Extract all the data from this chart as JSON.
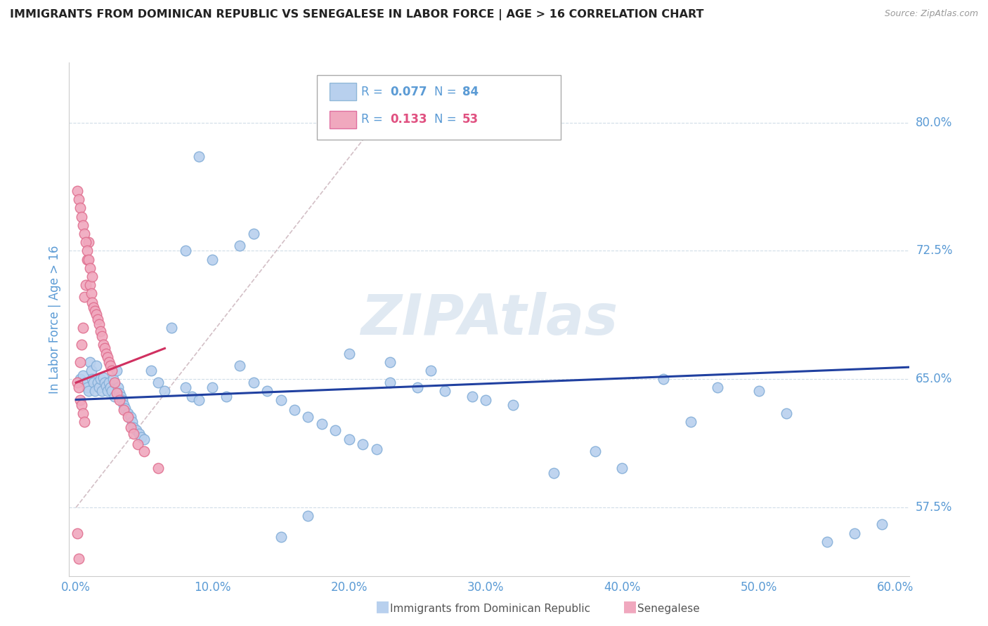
{
  "title": "IMMIGRANTS FROM DOMINICAN REPUBLIC VS SENEGALESE IN LABOR FORCE | AGE > 16 CORRELATION CHART",
  "source_text": "Source: ZipAtlas.com",
  "ylabel": "In Labor Force | Age > 16",
  "x_ticks": [
    0.0,
    0.1,
    0.2,
    0.3,
    0.4,
    0.5,
    0.6
  ],
  "x_tick_labels": [
    "0.0%",
    "10.0%",
    "20.0%",
    "30.0%",
    "40.0%",
    "50.0%",
    "60.0%"
  ],
  "y_ticks_right": [
    0.575,
    0.65,
    0.725,
    0.8
  ],
  "y_tick_labels_right": [
    "57.5%",
    "65.0%",
    "72.5%",
    "80.0%"
  ],
  "xlim": [
    -0.005,
    0.61
  ],
  "ylim": [
    0.535,
    0.835
  ],
  "axis_color": "#5b9bd5",
  "grid_color": "#d0dde8",
  "watermark_text": "ZIPAtlas",
  "blue_scatter_x": [
    0.003,
    0.005,
    0.007,
    0.008,
    0.009,
    0.01,
    0.011,
    0.012,
    0.013,
    0.014,
    0.015,
    0.016,
    0.017,
    0.018,
    0.019,
    0.02,
    0.021,
    0.022,
    0.023,
    0.024,
    0.025,
    0.026,
    0.027,
    0.028,
    0.03,
    0.031,
    0.032,
    0.033,
    0.034,
    0.035,
    0.036,
    0.038,
    0.04,
    0.041,
    0.042,
    0.044,
    0.046,
    0.048,
    0.05,
    0.055,
    0.06,
    0.065,
    0.07,
    0.08,
    0.085,
    0.09,
    0.1,
    0.11,
    0.12,
    0.13,
    0.14,
    0.15,
    0.16,
    0.17,
    0.18,
    0.19,
    0.2,
    0.21,
    0.22,
    0.23,
    0.25,
    0.27,
    0.29,
    0.3,
    0.32,
    0.35,
    0.38,
    0.4,
    0.43,
    0.45,
    0.47,
    0.5,
    0.52,
    0.55,
    0.57,
    0.59,
    0.08,
    0.1,
    0.12,
    0.13,
    0.15,
    0.17,
    0.2,
    0.23,
    0.26,
    0.09
  ],
  "blue_scatter_y": [
    0.65,
    0.652,
    0.648,
    0.645,
    0.643,
    0.66,
    0.655,
    0.65,
    0.648,
    0.643,
    0.658,
    0.648,
    0.645,
    0.65,
    0.643,
    0.651,
    0.648,
    0.646,
    0.643,
    0.648,
    0.645,
    0.643,
    0.65,
    0.64,
    0.655,
    0.645,
    0.642,
    0.64,
    0.638,
    0.635,
    0.633,
    0.63,
    0.628,
    0.625,
    0.622,
    0.62,
    0.618,
    0.616,
    0.615,
    0.655,
    0.648,
    0.643,
    0.68,
    0.645,
    0.64,
    0.638,
    0.645,
    0.64,
    0.658,
    0.648,
    0.643,
    0.638,
    0.632,
    0.628,
    0.624,
    0.62,
    0.615,
    0.612,
    0.609,
    0.648,
    0.645,
    0.643,
    0.64,
    0.638,
    0.635,
    0.595,
    0.608,
    0.598,
    0.65,
    0.625,
    0.645,
    0.643,
    0.63,
    0.555,
    0.56,
    0.565,
    0.725,
    0.72,
    0.728,
    0.735,
    0.558,
    0.57,
    0.665,
    0.66,
    0.655,
    0.78
  ],
  "pink_scatter_x": [
    0.001,
    0.002,
    0.003,
    0.004,
    0.005,
    0.006,
    0.007,
    0.008,
    0.009,
    0.01,
    0.011,
    0.012,
    0.013,
    0.014,
    0.015,
    0.016,
    0.017,
    0.018,
    0.019,
    0.02,
    0.021,
    0.022,
    0.023,
    0.024,
    0.025,
    0.026,
    0.028,
    0.03,
    0.032,
    0.035,
    0.038,
    0.04,
    0.042,
    0.045,
    0.05,
    0.06,
    0.001,
    0.002,
    0.003,
    0.004,
    0.005,
    0.006,
    0.007,
    0.008,
    0.009,
    0.01,
    0.012,
    0.001,
    0.002,
    0.003,
    0.004,
    0.005,
    0.006
  ],
  "pink_scatter_y": [
    0.56,
    0.545,
    0.66,
    0.67,
    0.68,
    0.698,
    0.705,
    0.72,
    0.73,
    0.705,
    0.7,
    0.695,
    0.692,
    0.69,
    0.688,
    0.685,
    0.682,
    0.678,
    0.675,
    0.67,
    0.668,
    0.665,
    0.663,
    0.66,
    0.658,
    0.655,
    0.648,
    0.642,
    0.638,
    0.632,
    0.628,
    0.622,
    0.618,
    0.612,
    0.608,
    0.598,
    0.76,
    0.755,
    0.75,
    0.745,
    0.74,
    0.735,
    0.73,
    0.725,
    0.72,
    0.715,
    0.71,
    0.648,
    0.645,
    0.638,
    0.635,
    0.63,
    0.625
  ],
  "blue_line": {
    "x0": 0.0,
    "x1": 0.61,
    "y0": 0.638,
    "y1": 0.657
  },
  "pink_line": {
    "x0": 0.0,
    "x1": 0.065,
    "y0": 0.648,
    "y1": 0.668
  },
  "diag_line": {
    "x0": 0.0,
    "x1": 0.22,
    "y0": 0.575,
    "y1": 0.8
  }
}
